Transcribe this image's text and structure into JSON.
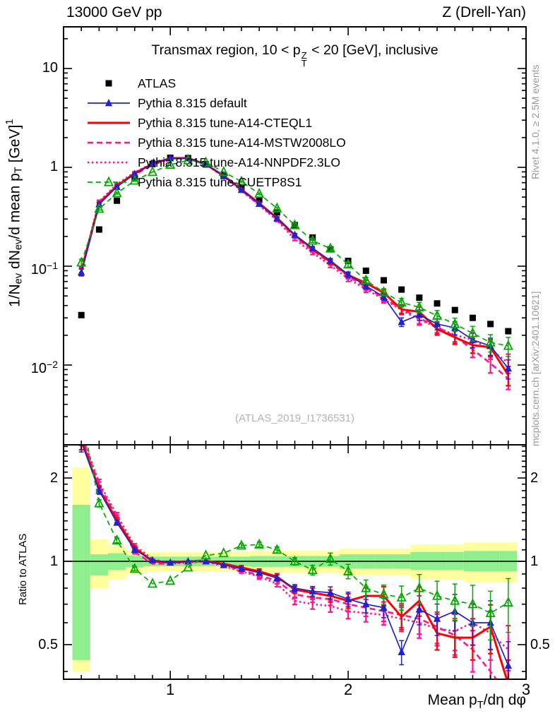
{
  "header": {
    "left": "13000 GeV pp",
    "right": "Z (Drell-Yan)"
  },
  "title": {
    "p1": "Transmax region, 10 < p",
    "sup": "Z",
    "sub": "T",
    "p2": " < 20 [GeV], inclusive"
  },
  "watermark": "(ATLAS_2019_I1736531)",
  "side_notes": {
    "top": "Rivet 4.1.0, ≥ 2.5M events",
    "bottom": "mcplots.cern.ch [arXiv:2401.10621]"
  },
  "legend": {
    "items": [
      {
        "key": "atlas",
        "label": "ATLAS"
      },
      {
        "key": "default",
        "label": "Pythia 8.315 default"
      },
      {
        "key": "cteql1",
        "label": "Pythia 8.315 tune-A14-CTEQL1"
      },
      {
        "key": "mstw",
        "label": "Pythia 8.315 tune-A14-MSTW2008LO"
      },
      {
        "key": "nnpdf",
        "label": "Pythia 8.315 tune-A14-NNPDF2.3LO"
      },
      {
        "key": "cuetp8s1",
        "label": "Pythia 8.315 tune-CUETP8S1"
      }
    ]
  },
  "axes": {
    "x": {
      "label": {
        "p1": "Mean p",
        "sub": "T",
        "p2": "/dη dφ"
      },
      "ticks": [
        "1",
        "2",
        "3"
      ],
      "tick_values": [
        1,
        2,
        3
      ],
      "range": [
        0.4,
        3.0
      ]
    },
    "y_main": {
      "label": {
        "p1": "1/N",
        "s1": "ev",
        "p2": " dN",
        "s2": "ev",
        "p3": "/d mean p",
        "s3": "T",
        "p4": " [GeV]",
        "sup1": "1"
      },
      "ticks": [
        {
          "v": 10,
          "base": "10",
          "exp": ""
        },
        {
          "v": 1,
          "base": "1",
          "exp": ""
        },
        {
          "v": 0.1,
          "base": "10",
          "exp": "−1"
        },
        {
          "v": 0.01,
          "base": "10",
          "exp": "−2"
        }
      ],
      "scale": "log",
      "range": [
        0.0016,
        26
      ]
    },
    "y_ratio": {
      "label": "Ratio to ATLAS",
      "ticks": [
        {
          "v": 2,
          "t": "2"
        },
        {
          "v": 1,
          "t": "1"
        },
        {
          "v": 0.5,
          "t": "0.5"
        }
      ],
      "scale": "log",
      "range": [
        0.375,
        2.64
      ]
    }
  },
  "chart_data": {
    "type": "line",
    "title": "Transmax region, 10 < pT(Z) < 20 [GeV], inclusive",
    "xlabel": "Mean pT/deta dphi",
    "ylabel_main": "1/Nev dNev/d mean pT [GeV]^1",
    "ylabel_ratio": "Ratio to ATLAS",
    "x_range": [
      0.4,
      3.0
    ],
    "y_main_scale": "log",
    "y_main_range": [
      0.0016,
      26
    ],
    "y_ratio_scale": "log",
    "y_ratio_range": [
      0.375,
      2.64
    ],
    "bin_width": 0.1,
    "values_definition": "main-panel MC values = atlas.values × series.ratio_to_atlas; ratio panel shows ratio_to_atlas directly",
    "x": [
      0.5,
      0.6,
      0.7,
      0.8,
      0.9,
      1.0,
      1.1,
      1.2,
      1.3,
      1.4,
      1.5,
      1.6,
      1.7,
      1.8,
      1.9,
      2.0,
      2.1,
      2.2,
      2.3,
      2.4,
      2.5,
      2.6,
      2.7,
      2.8,
      2.9
    ],
    "atlas": {
      "name": "ATLAS",
      "color": "#000000",
      "marker": "square",
      "values": [
        0.032,
        0.235,
        0.46,
        0.78,
        1.08,
        1.25,
        1.24,
        1.07,
        0.84,
        0.63,
        0.47,
        0.35,
        0.26,
        0.195,
        0.148,
        0.113,
        0.09,
        0.072,
        0.058,
        0.048,
        0.042,
        0.036,
        0.03,
        0.026,
        0.022
      ],
      "rel_err": [
        0.05,
        0.02,
        0.015,
        0.01,
        0.01,
        0.01,
        0.01,
        0.01,
        0.01,
        0.01,
        0.012,
        0.015,
        0.018,
        0.02,
        0.022,
        0.025,
        0.03,
        0.03,
        0.035,
        0.04,
        0.045,
        0.05,
        0.055,
        0.06,
        0.065
      ]
    },
    "mc_rel_err": [
      0.08,
      0.03,
      0.02,
      0.015,
      0.012,
      0.01,
      0.01,
      0.01,
      0.012,
      0.015,
      0.02,
      0.025,
      0.03,
      0.04,
      0.05,
      0.06,
      0.07,
      0.08,
      0.1,
      0.12,
      0.13,
      0.15,
      0.17,
      0.2,
      0.22
    ],
    "series": [
      {
        "key": "default",
        "name": "Pythia 8.315 default",
        "color": "#2222cc",
        "dash": "",
        "width": 1.7,
        "marker": "triangle-filled",
        "ratio_to_atlas": [
          2.7,
          1.8,
          1.38,
          1.1,
          1.01,
          0.99,
          1.0,
          1.0,
          0.97,
          0.94,
          0.91,
          0.87,
          0.8,
          0.78,
          0.77,
          0.73,
          0.7,
          0.68,
          0.47,
          0.67,
          0.62,
          0.66,
          0.6,
          0.6,
          0.42
        ]
      },
      {
        "key": "cteql1",
        "name": "Pythia 8.315 tune-A14-CTEQL1",
        "color": "#ff0000",
        "dash": "",
        "width": 3,
        "marker": "none",
        "ratio_to_atlas": [
          2.75,
          1.82,
          1.41,
          1.12,
          1.0,
          0.99,
          1.0,
          1.0,
          0.98,
          0.95,
          0.92,
          0.88,
          0.79,
          0.77,
          0.75,
          0.72,
          0.75,
          0.75,
          0.63,
          0.72,
          0.55,
          0.53,
          0.53,
          0.58,
          0.36
        ]
      },
      {
        "key": "mstw",
        "name": "Pythia 8.315 tune-A14-MSTW2008LO",
        "color": "#ff1493",
        "dash": "8 5",
        "width": 2.6,
        "marker": "none",
        "ratio_to_atlas": [
          2.85,
          1.88,
          1.44,
          1.08,
          0.98,
          0.98,
          1.0,
          1.01,
          0.97,
          0.93,
          0.89,
          0.85,
          0.76,
          0.74,
          0.73,
          0.7,
          0.68,
          0.66,
          0.64,
          0.62,
          0.58,
          0.54,
          0.48,
          0.4,
          0.33
        ]
      },
      {
        "key": "nnpdf",
        "name": "Pythia 8.315 tune-A14-NNPDF2.3LO",
        "color": "#ff1493",
        "dash": "2.5 3.5",
        "width": 2.6,
        "marker": "none",
        "ratio_to_atlas": [
          2.9,
          1.92,
          1.47,
          1.14,
          1.02,
          0.98,
          0.99,
          1.0,
          0.96,
          0.92,
          0.88,
          0.83,
          0.72,
          0.7,
          0.69,
          0.66,
          0.65,
          0.64,
          0.62,
          0.6,
          0.57,
          0.56,
          0.6,
          0.55,
          0.48
        ]
      },
      {
        "key": "cuetp8s1",
        "name": "Pythia 8.315 tune-CUETP8S1",
        "color": "#00aa00",
        "dash": "7 5",
        "width": 1.7,
        "marker": "triangle-open",
        "ratio_to_atlas": [
          3.4,
          1.62,
          1.19,
          0.94,
          0.83,
          0.85,
          0.95,
          1.05,
          1.07,
          1.14,
          1.15,
          1.1,
          1.0,
          0.93,
          1.02,
          0.92,
          0.8,
          0.76,
          0.74,
          0.8,
          0.75,
          0.72,
          0.7,
          0.65,
          0.71
        ]
      }
    ],
    "ratio_bands": {
      "yellow_color": "#ffff9e",
      "green_color": "#8fef8f",
      "yellow_lo": [
        0.4,
        0.8,
        0.86,
        0.9,
        0.92,
        0.92,
        0.92,
        0.92,
        0.92,
        0.92,
        0.91,
        0.91,
        0.91,
        0.91,
        0.91,
        0.89,
        0.89,
        0.89,
        0.89,
        0.86,
        0.86,
        0.86,
        0.84,
        0.84,
        0.84
      ],
      "yellow_hi": [
        2.18,
        1.2,
        1.14,
        1.1,
        1.08,
        1.08,
        1.08,
        1.08,
        1.08,
        1.08,
        1.09,
        1.09,
        1.09,
        1.09,
        1.09,
        1.11,
        1.11,
        1.11,
        1.11,
        1.15,
        1.15,
        1.15,
        1.17,
        1.17,
        1.17
      ],
      "green_lo": [
        0.44,
        0.89,
        0.93,
        0.95,
        0.96,
        0.96,
        0.96,
        0.96,
        0.96,
        0.96,
        0.955,
        0.955,
        0.955,
        0.955,
        0.955,
        0.94,
        0.94,
        0.94,
        0.94,
        0.93,
        0.93,
        0.93,
        0.92,
        0.92,
        0.92
      ],
      "green_hi": [
        1.6,
        1.06,
        1.07,
        1.05,
        1.04,
        1.04,
        1.04,
        1.04,
        1.04,
        1.04,
        1.045,
        1.045,
        1.045,
        1.045,
        1.045,
        1.06,
        1.06,
        1.06,
        1.06,
        1.08,
        1.08,
        1.08,
        1.09,
        1.09,
        1.09
      ]
    }
  }
}
